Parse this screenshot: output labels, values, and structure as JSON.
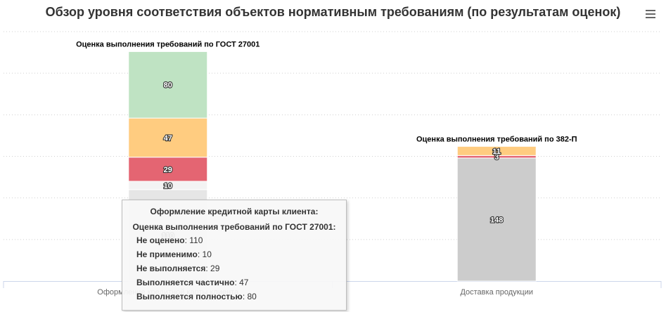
{
  "header": {
    "title": "Обзор уровня соответствия объектов нормативным требованиям (по результатам оценок)"
  },
  "toolbar": {
    "menu_icon": "hamburger-menu-icon"
  },
  "chart_data": {
    "type": "bar",
    "stacked": true,
    "categories": [
      "Оформление кредитной карты клиента",
      "Доставка продукции"
    ],
    "category_labels_visible": [
      "Оформлен… кредитной карты клиента",
      "Доставка продукции"
    ],
    "stack_titles": [
      "Оценка выполнения требований по ГОСТ 27001",
      "Оценка выполнения требований по 382-П"
    ],
    "series": [
      {
        "name": "Не оценено",
        "color": "#e6e6e6",
        "values": [
          110,
          148
        ]
      },
      {
        "name": "Не применимо",
        "color": "#f3f3f3",
        "values": [
          10,
          0
        ]
      },
      {
        "name": "Не выполняется",
        "color": "#e46572",
        "values": [
          29,
          3
        ]
      },
      {
        "name": "Выполняется частично",
        "color": "#ffcc80",
        "values": [
          47,
          11
        ]
      },
      {
        "name": "Выполняется полностью",
        "color": "#bfe3c3",
        "values": [
          80,
          0
        ]
      }
    ],
    "second_bar_color_unassessed": "#cccccc",
    "ylim": [
      0,
      300
    ],
    "grid": true,
    "gridline_style": "dotted"
  },
  "tooltip": {
    "category": "Оформление кредитной карты клиента:",
    "stack": "Оценка выполнения требований по ГОСТ 27001:",
    "rows": [
      {
        "label": "Не оценено",
        "value": "110"
      },
      {
        "label": "Не применимо",
        "value": "10"
      },
      {
        "label": "Не выполняется",
        "value": "29"
      },
      {
        "label": "Выполняется частично",
        "value": "47"
      },
      {
        "label": "Выполняется полностью",
        "value": "80"
      }
    ]
  }
}
